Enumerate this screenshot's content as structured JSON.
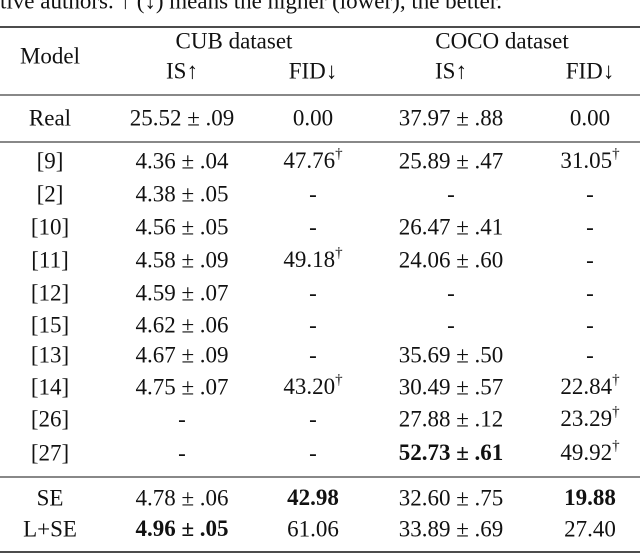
{
  "caption": "tive authors. ↑ (↓) means the higher (lower), the better.",
  "header": {
    "model": "Model",
    "groups": [
      "CUB dataset",
      "COCO dataset"
    ],
    "metrics": [
      "IS↑",
      "FID↓",
      "IS↑",
      "FID↓"
    ]
  },
  "sections": [
    [
      [
        "Real",
        "25.52 ± .09",
        "0.00",
        "37.97 ± .88",
        "0.00"
      ]
    ],
    [
      [
        "[9]",
        "4.36 ± .04",
        {
          "text": "47.76",
          "sup": "†"
        },
        "25.89 ± .47",
        {
          "text": "31.05",
          "sup": "†"
        }
      ],
      [
        "[2]",
        "4.38 ± .05",
        "-",
        "-",
        "-"
      ],
      [
        "[10]",
        "4.56 ± .05",
        "-",
        "26.47 ± .41",
        "-"
      ],
      [
        "[11]",
        "4.58 ± .09",
        {
          "text": "49.18",
          "sup": "†"
        },
        "24.06 ± .60",
        "-"
      ],
      [
        "[12]",
        "4.59 ± .07",
        "-",
        "-",
        "-"
      ],
      [
        "[15]",
        "4.62 ± .06",
        "-",
        "-",
        "-"
      ],
      [
        "[13]",
        "4.67 ± .09",
        "-",
        "35.69 ± .50",
        "-"
      ],
      [
        "[14]",
        "4.75 ± .07",
        {
          "text": "43.20",
          "sup": "†"
        },
        "30.49 ± .57",
        {
          "text": "22.84",
          "sup": "†"
        }
      ],
      [
        "[26]",
        "-",
        "-",
        "27.88 ± .12",
        {
          "text": "23.29",
          "sup": "†"
        }
      ],
      [
        "[27]",
        "-",
        "-",
        {
          "text": "52.73 ± .61",
          "bold": true
        },
        {
          "text": "49.92",
          "sup": "†"
        }
      ]
    ],
    [
      [
        "SE",
        "4.78 ± .06",
        {
          "text": "42.98",
          "bold": true
        },
        "32.60 ± .75",
        {
          "text": "19.88",
          "bold": true
        }
      ],
      [
        "L+SE",
        {
          "text": "4.96 ± .05",
          "bold": true
        },
        "61.06",
        "33.89 ± .69",
        "27.40"
      ]
    ]
  ]
}
